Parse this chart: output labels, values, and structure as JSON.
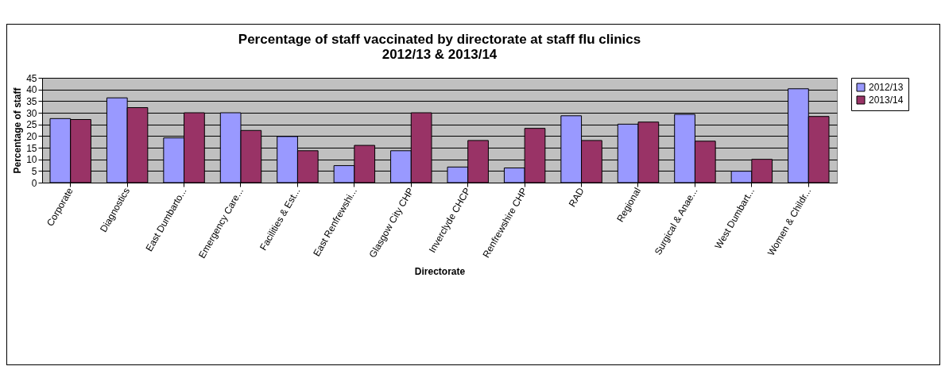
{
  "chart_data": {
    "type": "bar",
    "title": "Percentage of staff vaccinated by directorate at staff flu clinics\n2012/13 & 2013/14",
    "xlabel": "Directorate",
    "ylabel": "Percentage of staff",
    "categories": [
      "Corporate",
      "Diagnostics",
      "East Dumbarto...",
      "Emergency Care...",
      "Facilities & Est...",
      "East Renfrewshi...",
      "Glasgow City CHP",
      "Inverclyde CHCP",
      "Renfrewshire CHP",
      "RAD",
      "Regional",
      "Surgical & Anae...",
      "West Dumbart...",
      "Women & Childr..."
    ],
    "series": [
      {
        "name": "2012/13",
        "color": "#9999ff",
        "values": [
          27.5,
          36.4,
          19.2,
          30,
          19.8,
          7.3,
          13.7,
          6.7,
          6.3,
          28.7,
          25.1,
          29.3,
          4.9,
          40.3
        ]
      },
      {
        "name": "2013/14",
        "color": "#993366",
        "values": [
          27.1,
          32.2,
          30,
          22.4,
          13.7,
          16,
          30,
          18.1,
          23.3,
          18.1,
          26,
          17.8,
          10,
          28.4
        ]
      }
    ],
    "ylim": [
      0,
      45
    ],
    "yticks": [
      0,
      5,
      10,
      15,
      20,
      25,
      30,
      35,
      40,
      45
    ],
    "grid": "y",
    "legend": "right"
  }
}
